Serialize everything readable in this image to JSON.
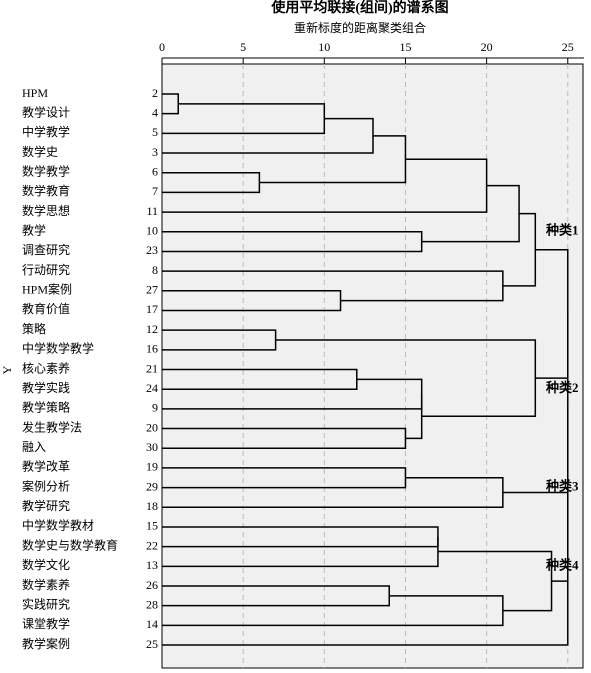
{
  "chart_data": {
    "type": "dendrogram",
    "title": "使用平均联接(组间)的谱系图",
    "subtitle": "重新标度的距离聚类组合",
    "y_label": "Y",
    "xlim": [
      0,
      26
    ],
    "xticks": [
      0,
      5,
      10,
      15,
      20,
      25
    ],
    "grid": true,
    "leaves": [
      {
        "label": "HPM",
        "id": 2
      },
      {
        "label": "教学设计",
        "id": 4
      },
      {
        "label": "中学教学",
        "id": 5
      },
      {
        "label": "数学史",
        "id": 3
      },
      {
        "label": "数学教学",
        "id": 6
      },
      {
        "label": "数学教育",
        "id": 7
      },
      {
        "label": "数学思想",
        "id": 11
      },
      {
        "label": "教学",
        "id": 10
      },
      {
        "label": "调查研究",
        "id": 23
      },
      {
        "label": "行动研究",
        "id": 8
      },
      {
        "label": "HPM案例",
        "id": 27
      },
      {
        "label": "教育价值",
        "id": 17
      },
      {
        "label": "策略",
        "id": 12
      },
      {
        "label": "中学数学教学",
        "id": 16
      },
      {
        "label": "核心素养",
        "id": 21
      },
      {
        "label": "教学实践",
        "id": 24
      },
      {
        "label": "教学策略",
        "id": 9
      },
      {
        "label": "发生教学法",
        "id": 20
      },
      {
        "label": "融入",
        "id": 30
      },
      {
        "label": "教学改革",
        "id": 19
      },
      {
        "label": "案例分析",
        "id": 29
      },
      {
        "label": "教学研究",
        "id": 18
      },
      {
        "label": "中学数学教材",
        "id": 15
      },
      {
        "label": "数学史与数学教育",
        "id": 22
      },
      {
        "label": "数学文化",
        "id": 13
      },
      {
        "label": "数学素养",
        "id": 26
      },
      {
        "label": "实践研究",
        "id": 28
      },
      {
        "label": "课堂教学",
        "id": 14
      },
      {
        "label": "教学案例",
        "id": 25
      }
    ],
    "merges": [
      {
        "children": [
          0,
          1
        ],
        "height": 1
      },
      {
        "children": [
          29,
          2
        ],
        "height": 10
      },
      {
        "children": [
          30,
          3
        ],
        "height": 13
      },
      {
        "children": [
          4,
          5
        ],
        "height": 6
      },
      {
        "children": [
          31,
          32
        ],
        "height": 15
      },
      {
        "children": [
          33,
          6
        ],
        "height": 20
      },
      {
        "children": [
          7,
          8
        ],
        "height": 16
      },
      {
        "children": [
          34,
          35
        ],
        "height": 22
      },
      {
        "children": [
          10,
          11
        ],
        "height": 11
      },
      {
        "children": [
          9,
          37
        ],
        "height": 21
      },
      {
        "children": [
          36,
          38
        ],
        "height": 23
      },
      {
        "children": [
          12,
          13
        ],
        "height": 7
      },
      {
        "children": [
          14,
          15
        ],
        "height": 12
      },
      {
        "children": [
          41,
          16
        ],
        "height": 16
      },
      {
        "children": [
          17,
          18
        ],
        "height": 15
      },
      {
        "children": [
          42,
          43
        ],
        "height": 16
      },
      {
        "children": [
          40,
          44
        ],
        "height": 23
      },
      {
        "children": [
          19,
          20
        ],
        "height": 15
      },
      {
        "children": [
          46,
          21
        ],
        "height": 21
      },
      {
        "children": [
          22,
          23
        ],
        "height": 17
      },
      {
        "children": [
          48,
          24
        ],
        "height": 17
      },
      {
        "children": [
          25,
          26
        ],
        "height": 14
      },
      {
        "children": [
          50,
          27
        ],
        "height": 21
      },
      {
        "children": [
          49,
          51
        ],
        "height": 24
      },
      {
        "children": [
          39,
          45
        ],
        "height": 25
      },
      {
        "children": [
          53,
          47
        ],
        "height": 25
      },
      {
        "children": [
          54,
          52
        ],
        "height": 25
      },
      {
        "children": [
          55,
          28
        ],
        "height": 25
      }
    ],
    "cluster_labels": [
      {
        "text": "种类1",
        "leaf": 7
      },
      {
        "text": "种类2",
        "leaf": 15
      },
      {
        "text": "种类3",
        "leaf": 20
      },
      {
        "text": "种类4",
        "leaf": 24
      }
    ]
  }
}
